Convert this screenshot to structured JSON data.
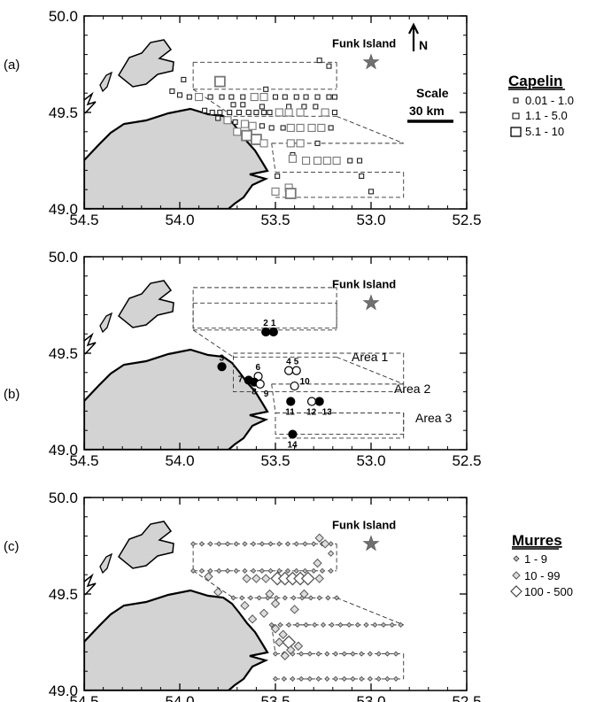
{
  "x_ticks": [
    "54.5",
    "54.0",
    "53.5",
    "53.0",
    "52.5"
  ],
  "y_ticks": [
    "50.0",
    "49.5",
    "49.0"
  ],
  "island_label": "Funk Island",
  "north_label": "N",
  "panels": [
    {
      "label": "(a)"
    },
    {
      "label": "(b)"
    },
    {
      "label": "(c)"
    }
  ],
  "scale": {
    "title": "Scale",
    "distance": "30 km"
  },
  "capelin_legend": {
    "title": "Capelin",
    "items": [
      "0.01 - 1.0",
      "1.1 - 5.0",
      "5.1 - 10"
    ]
  },
  "murres_legend": {
    "title": "Murres",
    "items": [
      "1 - 9",
      "10 - 99",
      "100 - 500"
    ]
  },
  "areas": [
    "Area 1",
    "Area 2",
    "Area 3"
  ],
  "colors": {
    "land": "#d3d3d3",
    "star": "#707070",
    "symbol_gray": "#777777",
    "symbol_dark": "#222222"
  },
  "chart_data": {
    "type": "scatter",
    "x_axis": {
      "range": [
        54.5,
        52.5
      ],
      "ticks": [
        54.5,
        54.0,
        53.5,
        53.0,
        52.5
      ],
      "reversed": true
    },
    "y_axis": {
      "range": [
        49.0,
        50.0
      ],
      "ticks": [
        49.0,
        49.5,
        50.0
      ]
    },
    "landmark": {
      "name": "Funk Island",
      "lon": 53.0,
      "lat": 49.76
    },
    "transects": [
      {
        "lat": 49.76,
        "lon": [
          53.93,
          53.18
        ]
      },
      {
        "lat": 49.62,
        "lon": [
          53.93,
          53.18
        ]
      },
      {
        "lat": 49.48,
        "lon": [
          53.72,
          53.18
        ]
      },
      {
        "lat": 49.34,
        "lon": [
          53.52,
          52.83
        ]
      },
      {
        "lat": 49.19,
        "lon": [
          53.5,
          52.83
        ]
      },
      {
        "lat": 49.06,
        "lon": [
          53.5,
          52.83
        ]
      }
    ],
    "capelin": [
      {
        "lon": 53.27,
        "lat": 49.77,
        "cls": 1
      },
      {
        "lon": 53.22,
        "lat": 49.74,
        "cls": 1
      },
      {
        "lon": 53.79,
        "lat": 49.66,
        "cls": 3
      },
      {
        "lon": 53.98,
        "lat": 49.67,
        "cls": 1
      },
      {
        "lon": 53.55,
        "lat": 49.62,
        "cls": 1
      },
      {
        "lon": 54.04,
        "lat": 49.61,
        "cls": 1
      },
      {
        "lon": 54.0,
        "lat": 49.59,
        "cls": 1
      },
      {
        "lon": 53.95,
        "lat": 49.58,
        "cls": 1
      },
      {
        "lon": 53.9,
        "lat": 49.58,
        "cls": 2
      },
      {
        "lon": 53.84,
        "lat": 49.58,
        "cls": 1
      },
      {
        "lon": 53.78,
        "lat": 49.58,
        "cls": 1
      },
      {
        "lon": 53.73,
        "lat": 49.58,
        "cls": 1
      },
      {
        "lon": 53.67,
        "lat": 49.58,
        "cls": 1
      },
      {
        "lon": 53.61,
        "lat": 49.58,
        "cls": 2
      },
      {
        "lon": 53.56,
        "lat": 49.58,
        "cls": 2
      },
      {
        "lon": 53.5,
        "lat": 49.58,
        "cls": 1
      },
      {
        "lon": 53.45,
        "lat": 49.58,
        "cls": 1
      },
      {
        "lon": 53.39,
        "lat": 49.58,
        "cls": 1
      },
      {
        "lon": 53.34,
        "lat": 49.58,
        "cls": 1
      },
      {
        "lon": 53.28,
        "lat": 49.58,
        "cls": 1
      },
      {
        "lon": 53.22,
        "lat": 49.58,
        "cls": 1
      },
      {
        "lon": 53.19,
        "lat": 49.58,
        "cls": 1
      },
      {
        "lon": 53.72,
        "lat": 49.54,
        "cls": 1
      },
      {
        "lon": 53.67,
        "lat": 49.54,
        "cls": 1
      },
      {
        "lon": 53.57,
        "lat": 49.53,
        "cls": 1
      },
      {
        "lon": 53.43,
        "lat": 49.53,
        "cls": 1
      },
      {
        "lon": 53.35,
        "lat": 49.53,
        "cls": 1
      },
      {
        "lon": 53.29,
        "lat": 49.53,
        "cls": 1
      },
      {
        "lon": 53.87,
        "lat": 49.51,
        "cls": 1
      },
      {
        "lon": 53.83,
        "lat": 49.5,
        "cls": 1
      },
      {
        "lon": 53.79,
        "lat": 49.5,
        "cls": 1
      },
      {
        "lon": 53.74,
        "lat": 49.5,
        "cls": 1
      },
      {
        "lon": 53.69,
        "lat": 49.5,
        "cls": 1
      },
      {
        "lon": 53.64,
        "lat": 49.5,
        "cls": 1
      },
      {
        "lon": 53.6,
        "lat": 49.5,
        "cls": 1
      },
      {
        "lon": 53.56,
        "lat": 49.5,
        "cls": 1
      },
      {
        "lon": 53.53,
        "lat": 49.5,
        "cls": 1
      },
      {
        "lon": 53.48,
        "lat": 49.5,
        "cls": 2
      },
      {
        "lon": 53.43,
        "lat": 49.5,
        "cls": 2
      },
      {
        "lon": 53.37,
        "lat": 49.5,
        "cls": 2
      },
      {
        "lon": 53.24,
        "lat": 49.5,
        "cls": 2
      },
      {
        "lon": 53.19,
        "lat": 49.5,
        "cls": 1
      },
      {
        "lon": 53.8,
        "lat": 49.47,
        "cls": 1
      },
      {
        "lon": 53.75,
        "lat": 49.46,
        "cls": 2
      },
      {
        "lon": 53.71,
        "lat": 49.45,
        "cls": 1
      },
      {
        "lon": 53.66,
        "lat": 49.44,
        "cls": 2
      },
      {
        "lon": 53.62,
        "lat": 49.43,
        "cls": 2
      },
      {
        "lon": 53.57,
        "lat": 49.43,
        "cls": 1
      },
      {
        "lon": 53.52,
        "lat": 49.42,
        "cls": 1
      },
      {
        "lon": 53.46,
        "lat": 49.42,
        "cls": 1
      },
      {
        "lon": 53.42,
        "lat": 49.42,
        "cls": 2
      },
      {
        "lon": 53.37,
        "lat": 49.42,
        "cls": 2
      },
      {
        "lon": 53.31,
        "lat": 49.42,
        "cls": 2
      },
      {
        "lon": 53.26,
        "lat": 49.42,
        "cls": 2
      },
      {
        "lon": 53.21,
        "lat": 49.42,
        "cls": 1
      },
      {
        "lon": 53.7,
        "lat": 49.4,
        "cls": 2
      },
      {
        "lon": 53.65,
        "lat": 49.38,
        "cls": 3
      },
      {
        "lon": 53.6,
        "lat": 49.36,
        "cls": 3
      },
      {
        "lon": 53.56,
        "lat": 49.34,
        "cls": 2
      },
      {
        "lon": 53.42,
        "lat": 49.34,
        "cls": 2
      },
      {
        "lon": 53.37,
        "lat": 49.34,
        "cls": 2
      },
      {
        "lon": 53.28,
        "lat": 49.34,
        "cls": 1
      },
      {
        "lon": 53.41,
        "lat": 49.28,
        "cls": 1
      },
      {
        "lon": 53.41,
        "lat": 49.26,
        "cls": 2
      },
      {
        "lon": 53.34,
        "lat": 49.25,
        "cls": 2
      },
      {
        "lon": 53.28,
        "lat": 49.25,
        "cls": 2
      },
      {
        "lon": 53.23,
        "lat": 49.25,
        "cls": 2
      },
      {
        "lon": 53.18,
        "lat": 49.25,
        "cls": 2
      },
      {
        "lon": 53.11,
        "lat": 49.25,
        "cls": 1
      },
      {
        "lon": 53.06,
        "lat": 49.25,
        "cls": 1
      },
      {
        "lon": 53.49,
        "lat": 49.17,
        "cls": 1
      },
      {
        "lon": 53.43,
        "lat": 49.11,
        "cls": 2
      },
      {
        "lon": 53.05,
        "lat": 49.17,
        "cls": 1
      },
      {
        "lon": 53.5,
        "lat": 49.09,
        "cls": 2
      },
      {
        "lon": 53.42,
        "lat": 49.08,
        "cls": 3
      },
      {
        "lon": 53.0,
        "lat": 49.09,
        "cls": 1
      }
    ],
    "stations": [
      {
        "n": "1",
        "lon": 53.51,
        "lat": 49.61,
        "filled": true
      },
      {
        "n": "2",
        "lon": 53.55,
        "lat": 49.61,
        "filled": true
      },
      {
        "n": "3",
        "lon": 53.78,
        "lat": 49.43,
        "filled": true
      },
      {
        "n": "4",
        "lon": 53.43,
        "lat": 49.41,
        "filled": false
      },
      {
        "n": "5",
        "lon": 53.39,
        "lat": 49.41,
        "filled": false
      },
      {
        "n": "6",
        "lon": 53.59,
        "lat": 49.38,
        "filled": false
      },
      {
        "n": "7",
        "lon": 53.64,
        "lat": 49.36,
        "filled": true
      },
      {
        "n": "8",
        "lon": 53.61,
        "lat": 49.35,
        "filled": true
      },
      {
        "n": "9",
        "lon": 53.58,
        "lat": 49.34,
        "filled": false
      },
      {
        "n": "10",
        "lon": 53.4,
        "lat": 49.33,
        "filled": false
      },
      {
        "n": "11",
        "lon": 53.42,
        "lat": 49.25,
        "filled": true
      },
      {
        "n": "12",
        "lon": 53.31,
        "lat": 49.25,
        "filled": false
      },
      {
        "n": "13",
        "lon": 53.27,
        "lat": 49.25,
        "filled": true
      },
      {
        "n": "14",
        "lon": 53.41,
        "lat": 49.08,
        "filled": true
      }
    ],
    "area_boxes": [
      {
        "name": "Area 1",
        "lon": [
          53.93,
          53.18
        ],
        "lat": [
          49.63,
          49.84
        ]
      },
      {
        "name": "Area 2",
        "lon": [
          53.72,
          52.83
        ],
        "lat": [
          49.3,
          49.5
        ]
      },
      {
        "name": "Area 3",
        "lon": [
          53.5,
          52.83
        ],
        "lat": [
          49.08,
          49.19
        ]
      }
    ],
    "murres": [
      {
        "lon": 53.27,
        "lat": 49.79,
        "cls": 2
      },
      {
        "lon": 53.24,
        "lat": 49.76,
        "cls": 2
      },
      {
        "lon": 53.21,
        "lat": 49.71,
        "cls": 1
      },
      {
        "lon": 53.49,
        "lat": 49.58,
        "cls": 3
      },
      {
        "lon": 53.45,
        "lat": 49.58,
        "cls": 3
      },
      {
        "lon": 53.41,
        "lat": 49.58,
        "cls": 3
      },
      {
        "lon": 53.37,
        "lat": 49.58,
        "cls": 3
      },
      {
        "lon": 53.33,
        "lat": 49.58,
        "cls": 3
      },
      {
        "lon": 53.55,
        "lat": 49.58,
        "cls": 2
      },
      {
        "lon": 53.6,
        "lat": 49.58,
        "cls": 2
      },
      {
        "lon": 53.65,
        "lat": 49.58,
        "cls": 2
      },
      {
        "lon": 53.27,
        "lat": 49.58,
        "cls": 2
      },
      {
        "lon": 53.28,
        "lat": 49.66,
        "cls": 2
      },
      {
        "lon": 53.53,
        "lat": 49.5,
        "cls": 2
      },
      {
        "lon": 53.5,
        "lat": 49.45,
        "cls": 2
      },
      {
        "lon": 53.56,
        "lat": 49.4,
        "cls": 2
      },
      {
        "lon": 53.62,
        "lat": 49.37,
        "cls": 2
      },
      {
        "lon": 53.5,
        "lat": 49.32,
        "cls": 2
      },
      {
        "lon": 53.46,
        "lat": 49.29,
        "cls": 2
      },
      {
        "lon": 53.43,
        "lat": 49.25,
        "cls": 3
      },
      {
        "lon": 53.42,
        "lat": 49.21,
        "cls": 2
      },
      {
        "lon": 53.45,
        "lat": 49.18,
        "cls": 2
      },
      {
        "lon": 53.38,
        "lat": 49.23,
        "cls": 2
      },
      {
        "lon": 53.48,
        "lat": 49.25,
        "cls": 2
      },
      {
        "lon": 53.85,
        "lat": 49.59,
        "cls": 2
      },
      {
        "lon": 53.8,
        "lat": 49.51,
        "cls": 2
      },
      {
        "lon": 53.66,
        "lat": 49.44,
        "cls": 2
      },
      {
        "lon": 53.35,
        "lat": 49.5,
        "cls": 2
      },
      {
        "lon": 53.4,
        "lat": 49.42,
        "cls": 2
      }
    ]
  }
}
